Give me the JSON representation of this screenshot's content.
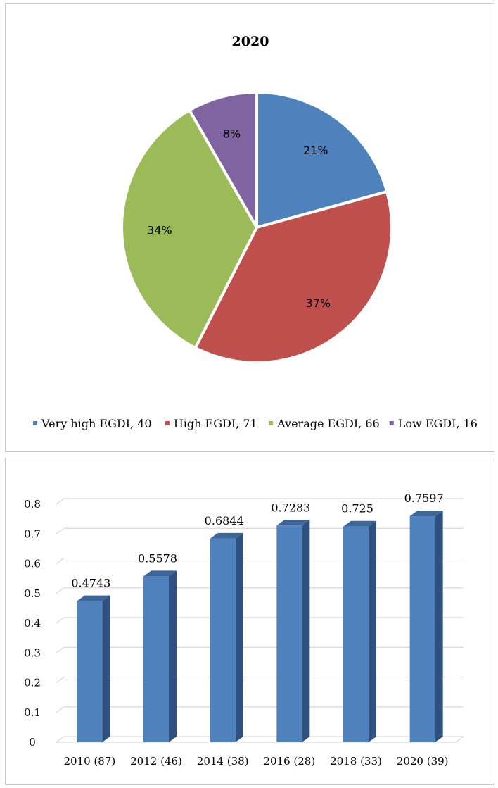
{
  "chart_data": [
    {
      "type": "pie",
      "title": "2020",
      "slices": [
        {
          "name": "Very high EGDI",
          "value": 40,
          "label": "21%",
          "legend": "Very high EGDI, 40",
          "color": "#4F81BD"
        },
        {
          "name": "High EGDI",
          "value": 71,
          "label": "37%",
          "legend": "High EGDI, 71",
          "color": "#C0504D"
        },
        {
          "name": "Average EGDI",
          "value": 66,
          "label": "34%",
          "legend": "Average EGDI, 66",
          "color": "#9BBB59"
        },
        {
          "name": "Low EGDI",
          "value": 16,
          "label": "8%",
          "legend": "Low EGDI, 16",
          "color": "#8064A2"
        }
      ],
      "legend_position": "bottom"
    },
    {
      "type": "bar",
      "categories": [
        "2010 (87)",
        "2012 (46)",
        "2014 (38)",
        "2016 (28)",
        "2018 (33)",
        "2020 (39)"
      ],
      "values": [
        0.4743,
        0.5578,
        0.6844,
        0.7283,
        0.725,
        0.7597
      ],
      "data_labels": [
        "0.4743",
        "0.5578",
        "0.6844",
        "0.7283",
        "0.725",
        "0.7597"
      ],
      "yticks": [
        "0",
        "0.1",
        "0.2",
        "0.3",
        "0.4",
        "0.5",
        "0.6",
        "0.7",
        "0.8"
      ],
      "ylim": [
        0,
        0.8
      ],
      "grid": true,
      "style": "3d-column",
      "color": "#4F81BD"
    }
  ]
}
